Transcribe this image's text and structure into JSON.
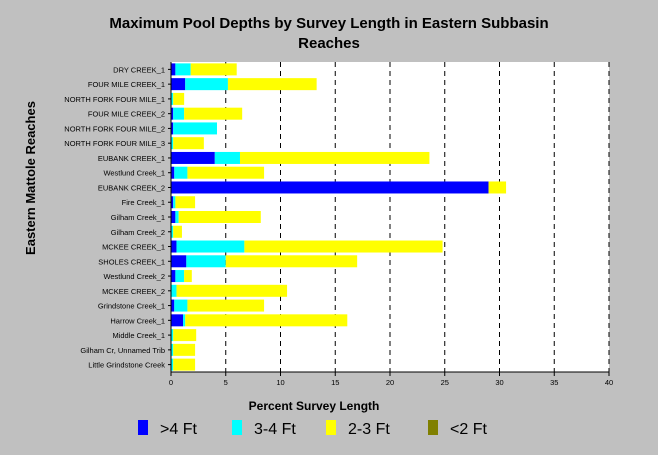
{
  "chart_data": {
    "type": "bar",
    "orientation": "horizontal",
    "stacked": true,
    "title_line1": "Maximum Pool Depths by Survey Length in Eastern Subbasin",
    "title_line2": "Reaches",
    "xlabel": "Percent Survey Length",
    "ylabel": "Eastern Mattole Reaches",
    "xlim": [
      0,
      40
    ],
    "xticks": [
      0,
      5,
      10,
      15,
      20,
      25,
      30,
      35,
      40
    ],
    "grid": "vertical dashed",
    "legend_position": "bottom",
    "categories": [
      "DRY CREEK_1",
      "FOUR MILE CREEK_1",
      "NORTH FORK FOUR MILE_1",
      "FOUR MILE CREEK_2",
      "NORTH FORK FOUR MILE_2",
      "NORTH FORK FOUR MILE_3",
      "EUBANK CREEK_1",
      "Westlund Creek_1",
      "EUBANK CREEK_2",
      "Fire Creek_1",
      "Gilham Creek_1",
      "Gilham Creek_2",
      "MCKEE CREEK_1",
      "SHOLES CREEK_1",
      "Westlund Creek_2",
      "MCKEE CREEK_2",
      "Grindstone Creek_1",
      "Harrow Creek_1",
      "Middle Creek_1",
      "Gilham Cr, Unnamed Trib",
      "Little Grindstone Creek"
    ],
    "series": [
      {
        "name": ">4 Ft",
        "color": "#0000ff",
        "values": [
          0.4,
          1.3,
          0,
          0.2,
          0.2,
          0,
          4.0,
          0.3,
          29.0,
          0.2,
          0.4,
          0,
          0.5,
          1.4,
          0.4,
          0,
          0.3,
          1.1,
          0,
          0,
          0
        ]
      },
      {
        "name": "3-4 Ft",
        "color": "#00ffff",
        "values": [
          1.4,
          3.9,
          0.2,
          1.0,
          4.0,
          0.2,
          2.3,
          1.2,
          0,
          0.2,
          0.3,
          0.2,
          6.2,
          3.6,
          0.8,
          0.5,
          1.2,
          0.2,
          0.2,
          0.2,
          0.2
        ]
      },
      {
        "name": "2-3 Ft",
        "color": "#ffff00",
        "values": [
          4.2,
          8.1,
          1.0,
          5.3,
          0,
          2.8,
          17.3,
          7.0,
          1.6,
          1.8,
          7.5,
          0.8,
          18.1,
          12.0,
          0.7,
          10.1,
          7.0,
          14.8,
          2.1,
          2.0,
          2.0
        ]
      },
      {
        "name": "<2 Ft",
        "color": "#808000",
        "values": [
          0,
          0,
          0,
          0,
          0,
          0,
          0,
          0,
          0,
          0,
          0,
          0,
          0,
          0,
          0,
          0,
          0,
          0,
          0,
          0,
          0
        ]
      }
    ]
  }
}
